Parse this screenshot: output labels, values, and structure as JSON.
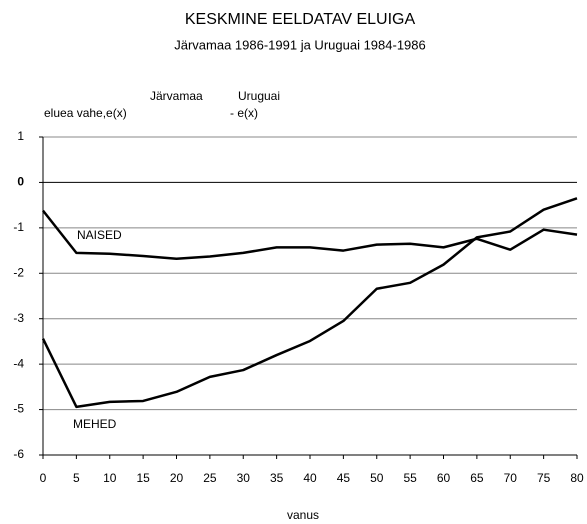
{
  "chart_data": {
    "type": "line",
    "title": "KESKMINE  EELDATAV  ELUIGA",
    "subtitle": "Järvamaa  1986-1991  ja  Uruguai  1984-1986",
    "y_label": [
      "Järvamaa",
      "Uruguai",
      "eluea vahe,e(x)",
      "- e(x)"
    ],
    "x_label": "vanus",
    "annotations": [
      "NAISED",
      "MEHED"
    ],
    "x": [
      0,
      5,
      10,
      15,
      20,
      25,
      30,
      35,
      40,
      45,
      50,
      55,
      60,
      65,
      70,
      75,
      80
    ],
    "series": [
      {
        "name": "NAISED",
        "color": "#000000",
        "values": [
          -0.62,
          -1.55,
          -1.57,
          -1.62,
          -1.68,
          -1.63,
          -1.55,
          -1.43,
          -1.43,
          -1.5,
          -1.37,
          -1.35,
          -1.43,
          -1.24,
          -1.48,
          -1.04,
          -1.15
        ]
      },
      {
        "name": "MEHED",
        "color": "#000000",
        "values": [
          -3.44,
          -4.94,
          -4.83,
          -4.81,
          -4.61,
          -4.28,
          -4.13,
          -3.8,
          -3.49,
          -3.05,
          -2.34,
          -2.21,
          -1.81,
          -1.21,
          -1.08,
          -0.6,
          -0.35
        ]
      }
    ],
    "xlim": [
      0,
      80
    ],
    "xticks": [
      0,
      5,
      10,
      15,
      20,
      25,
      30,
      35,
      40,
      45,
      50,
      55,
      60,
      65,
      70,
      75,
      80
    ],
    "ylim": [
      -6,
      1
    ],
    "yticks": [
      -6,
      -5,
      -4,
      -3,
      -2,
      -1,
      0,
      1
    ],
    "grid": true
  }
}
